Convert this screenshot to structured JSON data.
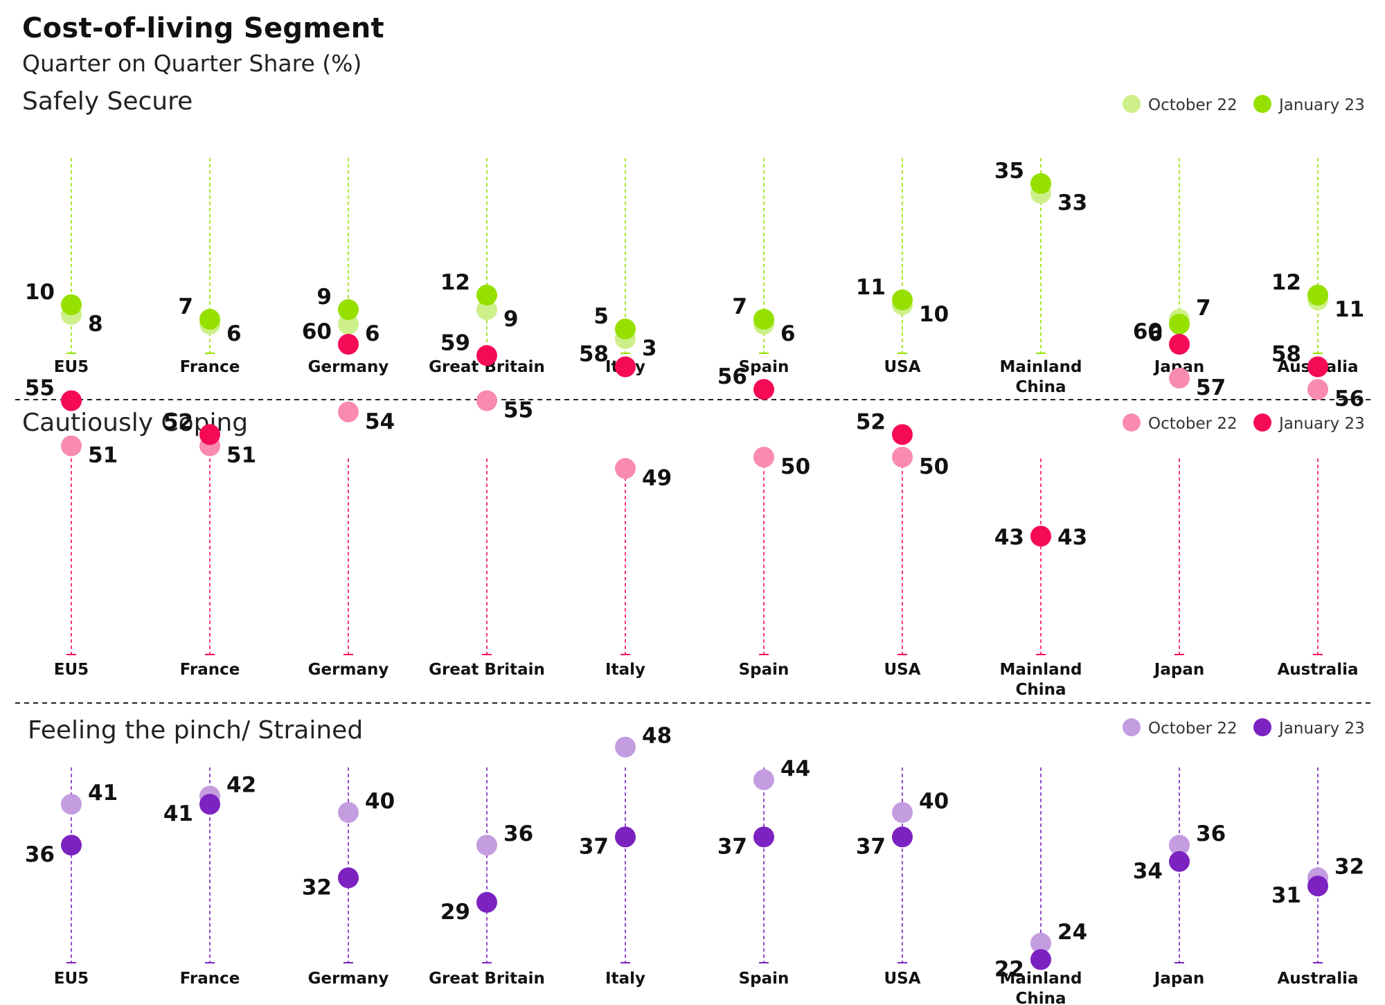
{
  "chart_title": "Cost-of-living Segment",
  "chart_subtitle": "Quarter on Quarter Share (%)",
  "legend": {
    "oct": "October 22",
    "jan": "January 23"
  },
  "colors": {
    "safe_light": "#cdf08a",
    "safe_dark": "#96e000",
    "safe_line": "#96e000",
    "cope_light": "#f98bb0",
    "cope_dark": "#f50a55",
    "cope_line": "#f50a55",
    "pinch_light": "#c49ce0",
    "pinch_dark": "#7b22c0",
    "pinch_line": "#7b22c0"
  },
  "chart_data": [
    {
      "type": "scatter",
      "title": "Safely Secure",
      "categories": [
        "EU5",
        "France",
        "Germany",
        "Great Britain",
        "Italy",
        "Spain",
        "USA",
        "Mainland China",
        "Japan",
        "Australia"
      ],
      "series": [
        {
          "name": "October 22",
          "values": [
            8,
            6,
            6,
            9,
            3,
            6,
            10,
            33,
            7,
            11
          ]
        },
        {
          "name": "January 23",
          "values": [
            10,
            7,
            9,
            12,
            5,
            7,
            11,
            35,
            6,
            12
          ]
        }
      ]
    },
    {
      "type": "scatter",
      "title": "Cautiously Coping",
      "categories": [
        "EU5",
        "France",
        "Germany",
        "Great Britain",
        "Italy",
        "Spain",
        "USA",
        "Mainland China",
        "Japan",
        "Australia"
      ],
      "series": [
        {
          "name": "October 22",
          "values": [
            51,
            51,
            54,
            55,
            49,
            50,
            50,
            43,
            57,
            56
          ]
        },
        {
          "name": "January 23",
          "values": [
            55,
            52,
            60,
            59,
            58,
            56,
            52,
            43,
            60,
            58
          ]
        }
      ]
    },
    {
      "type": "scatter",
      "title": "Feeling the pinch/ Strained",
      "categories": [
        "EU5",
        "France",
        "Germany",
        "Great Britain",
        "Italy",
        "Spain",
        "USA",
        "Mainland China",
        "Japan",
        "Australia"
      ],
      "series": [
        {
          "name": "October 22",
          "values": [
            41,
            42,
            40,
            36,
            48,
            44,
            40,
            24,
            36,
            32
          ]
        },
        {
          "name": "January 23",
          "values": [
            36,
            41,
            32,
            29,
            37,
            37,
            37,
            22,
            34,
            31
          ]
        }
      ]
    }
  ]
}
